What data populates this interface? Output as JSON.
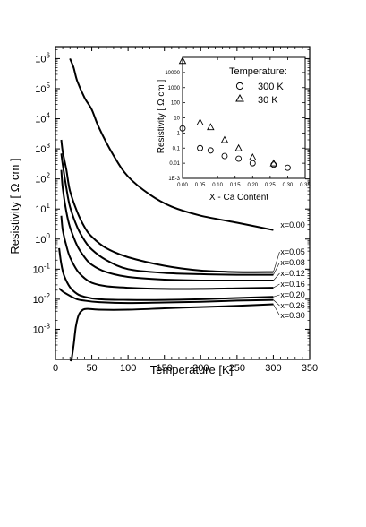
{
  "chart_data": [
    {
      "type": "line",
      "xlabel": "Temperature [K]",
      "ylabel": "Resistivity [ Ω cm ]",
      "xlim": [
        0,
        350
      ],
      "ylim_log10": [
        -4,
        6.4
      ],
      "yscale": "log",
      "grid": false,
      "x_ticks": [
        "0",
        "50",
        "100",
        "150",
        "200",
        "250",
        "300",
        "350"
      ],
      "y_tick_exponents": [
        "-3",
        "-2",
        "-1",
        "0",
        "1",
        "2",
        "3",
        "4",
        "5",
        "6"
      ],
      "series": [
        {
          "name": "x=0.00",
          "x": [
            20,
            25,
            30,
            40,
            50,
            60,
            80,
            100,
            130,
            160,
            200,
            250,
            300
          ],
          "y": [
            1000000,
            500000,
            180000,
            50000,
            20000,
            5000,
            600,
            120,
            30,
            12,
            6,
            3.5,
            2
          ]
        },
        {
          "name": "x=0.05",
          "x": [
            8,
            10,
            15,
            20,
            30,
            40,
            50,
            70,
            100,
            150,
            200,
            250,
            300
          ],
          "y": [
            2000,
            800,
            200,
            40,
            8,
            2.5,
            1.2,
            0.5,
            0.25,
            0.13,
            0.09,
            0.08,
            0.08
          ]
        },
        {
          "name": "x=0.08",
          "x": [
            8,
            10,
            15,
            20,
            30,
            40,
            50,
            70,
            100,
            150,
            200,
            250,
            300
          ],
          "y": [
            700,
            300,
            50,
            12,
            2.5,
            0.9,
            0.45,
            0.2,
            0.1,
            0.075,
            0.068,
            0.065,
            0.065
          ]
        },
        {
          "name": "x=0.12",
          "x": [
            8,
            10,
            15,
            20,
            30,
            40,
            50,
            70,
            100,
            150,
            200,
            250,
            300
          ],
          "y": [
            200,
            50,
            8,
            2.5,
            0.6,
            0.25,
            0.14,
            0.08,
            0.055,
            0.045,
            0.042,
            0.042,
            0.042
          ]
        },
        {
          "name": "x=0.16",
          "x": [
            8,
            10,
            15,
            20,
            30,
            40,
            50,
            70,
            100,
            150,
            200,
            250,
            300
          ],
          "y": [
            6,
            2,
            0.6,
            0.25,
            0.09,
            0.05,
            0.035,
            0.027,
            0.024,
            0.022,
            0.022,
            0.023,
            0.024
          ]
        },
        {
          "name": "x=0.20",
          "x": [
            5,
            8,
            12,
            20,
            30,
            40,
            60,
            100,
            150,
            200,
            250,
            300
          ],
          "y": [
            0.5,
            0.15,
            0.06,
            0.025,
            0.015,
            0.012,
            0.01,
            0.0095,
            0.0095,
            0.01,
            0.011,
            0.012
          ]
        },
        {
          "name": "x=0.26",
          "x": [
            5,
            10,
            20,
            30,
            40,
            60,
            100,
            150,
            200,
            250,
            300
          ],
          "y": [
            0.023,
            0.018,
            0.013,
            0.01,
            0.009,
            0.008,
            0.0075,
            0.0078,
            0.0082,
            0.009,
            0.0095
          ]
        },
        {
          "name": "x=0.30",
          "x": [
            20,
            22,
            25,
            28,
            32,
            38,
            45,
            60,
            100,
            150,
            200,
            250,
            300
          ],
          "y": [
            5e-05,
            0.0001,
            0.0003,
            0.0012,
            0.003,
            0.0045,
            0.0048,
            0.0045,
            0.0045,
            0.005,
            0.0055,
            0.006,
            0.0068
          ]
        }
      ]
    },
    {
      "type": "scatter",
      "xlabel": "X - Ca Content",
      "ylabel": "Resistivity [ Ω cm ]",
      "yscale": "log",
      "xlim": [
        0,
        0.35
      ],
      "ylim_log10": [
        -3,
        5
      ],
      "x_ticks": [
        "0.00",
        "0.05",
        "0.10",
        "0.15",
        "0.20",
        "0.25",
        "0.30",
        "0.35"
      ],
      "y_ticks": [
        "1E-3",
        "0.01",
        "0.1",
        "1",
        "10",
        "100",
        "1000",
        "10000"
      ],
      "legend_title": "Temperature:",
      "legend_position": "top-right",
      "series": [
        {
          "name": "300 K",
          "marker": "circle",
          "x": [
            0.0,
            0.05,
            0.08,
            0.12,
            0.16,
            0.2,
            0.26,
            0.3
          ],
          "y": [
            2,
            0.1,
            0.07,
            0.03,
            0.02,
            0.01,
            0.008,
            0.005
          ]
        },
        {
          "name": "30 K",
          "marker": "triangle",
          "x": [
            0.0,
            0.05,
            0.08,
            0.12,
            0.16,
            0.2,
            0.26
          ],
          "y": [
            60000,
            5,
            2.5,
            0.35,
            0.1,
            0.025,
            0.01
          ]
        }
      ]
    }
  ]
}
